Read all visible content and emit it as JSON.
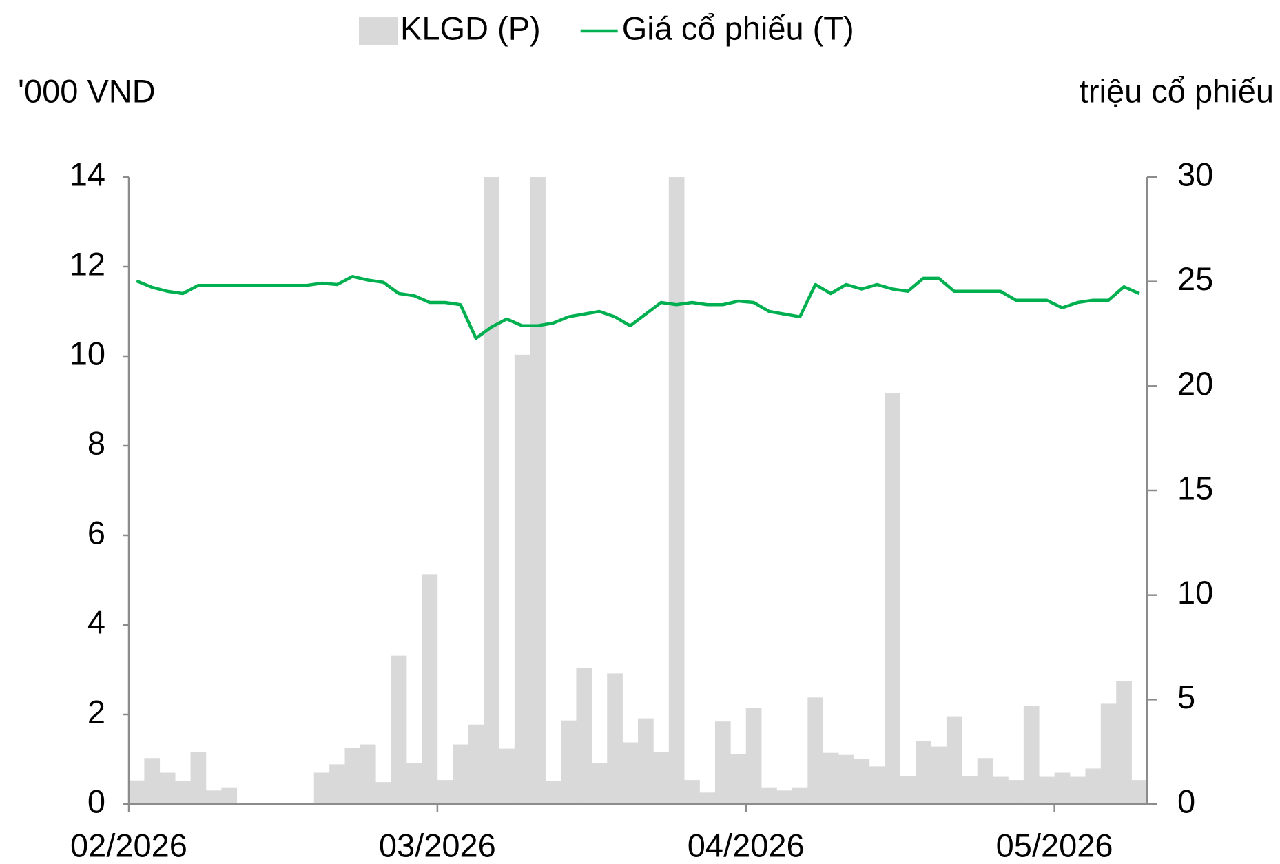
{
  "chart_data": {
    "type": "combo",
    "y_label": "'000 VND",
    "y2_label": "triệu cổ phiếu",
    "legend": "top",
    "categories": [
      "02/2026",
      null,
      null,
      null,
      null,
      null,
      null,
      null,
      null,
      null,
      null,
      null,
      null,
      null,
      null,
      null,
      null,
      null,
      null,
      null,
      "03/2026",
      null,
      null,
      null,
      null,
      null,
      null,
      null,
      null,
      null,
      null,
      null,
      null,
      null,
      null,
      null,
      null,
      null,
      null,
      null,
      "04/2026",
      null,
      null,
      null,
      null,
      null,
      null,
      null,
      null,
      null,
      null,
      null,
      null,
      null,
      null,
      null,
      null,
      null,
      null,
      null,
      "05/2026",
      null,
      null,
      null,
      null,
      null
    ],
    "series": [
      {
        "name": "KLGD (P)",
        "type": "bar",
        "axis": "y2",
        "color": "#d9d9d9",
        "values": [
          1.13,
          2.2,
          1.5,
          1.1,
          2.5,
          0.65,
          0.8,
          0,
          0,
          0,
          0,
          0,
          1.5,
          1.9,
          2.7,
          2.85,
          1.05,
          7.1,
          1.95,
          11.0,
          1.15,
          2.85,
          3.8,
          30,
          2.65,
          21.5,
          30,
          1.1,
          4.0,
          6.5,
          1.95,
          6.25,
          2.95,
          4.1,
          2.5,
          30,
          1.15,
          0.55,
          3.95,
          2.4,
          4.6,
          0.8,
          0.65,
          0.8,
          5.1,
          2.45,
          2.35,
          2.15,
          1.8,
          19.65,
          1.35,
          3.0,
          2.75,
          4.2,
          1.35,
          2.2,
          1.3,
          1.15,
          4.7,
          1.3,
          1.5,
          1.3,
          1.7,
          4.8,
          5.9,
          1.15
        ]
      },
      {
        "name": "Giá cổ phiếu (T)",
        "type": "line",
        "axis": "y",
        "color": "#00b050",
        "values": [
          11.68,
          11.54,
          11.45,
          11.4,
          11.58,
          11.58,
          11.58,
          11.58,
          11.58,
          11.58,
          11.58,
          11.58,
          11.63,
          11.6,
          11.78,
          11.7,
          11.65,
          11.4,
          11.35,
          11.2,
          11.2,
          11.15,
          10.4,
          10.65,
          10.83,
          10.68,
          10.68,
          10.74,
          10.88,
          10.94,
          11.0,
          10.88,
          10.68,
          10.94,
          11.2,
          11.15,
          11.2,
          11.15,
          11.15,
          11.23,
          11.2,
          11.0,
          10.94,
          10.88,
          11.6,
          11.4,
          11.6,
          11.5,
          11.6,
          11.5,
          11.45,
          11.74,
          11.74,
          11.45,
          11.45,
          11.45,
          11.45,
          11.25,
          11.25,
          11.25,
          11.08,
          11.2,
          11.25,
          11.25,
          11.55,
          11.4
        ]
      }
    ],
    "ylim": [
      0,
      14
    ],
    "yticks": [
      0,
      2,
      4,
      6,
      8,
      10,
      12,
      14
    ],
    "y2lim": [
      0,
      30
    ],
    "y2ticks": [
      0,
      5,
      10,
      15,
      20,
      25,
      30
    ]
  }
}
